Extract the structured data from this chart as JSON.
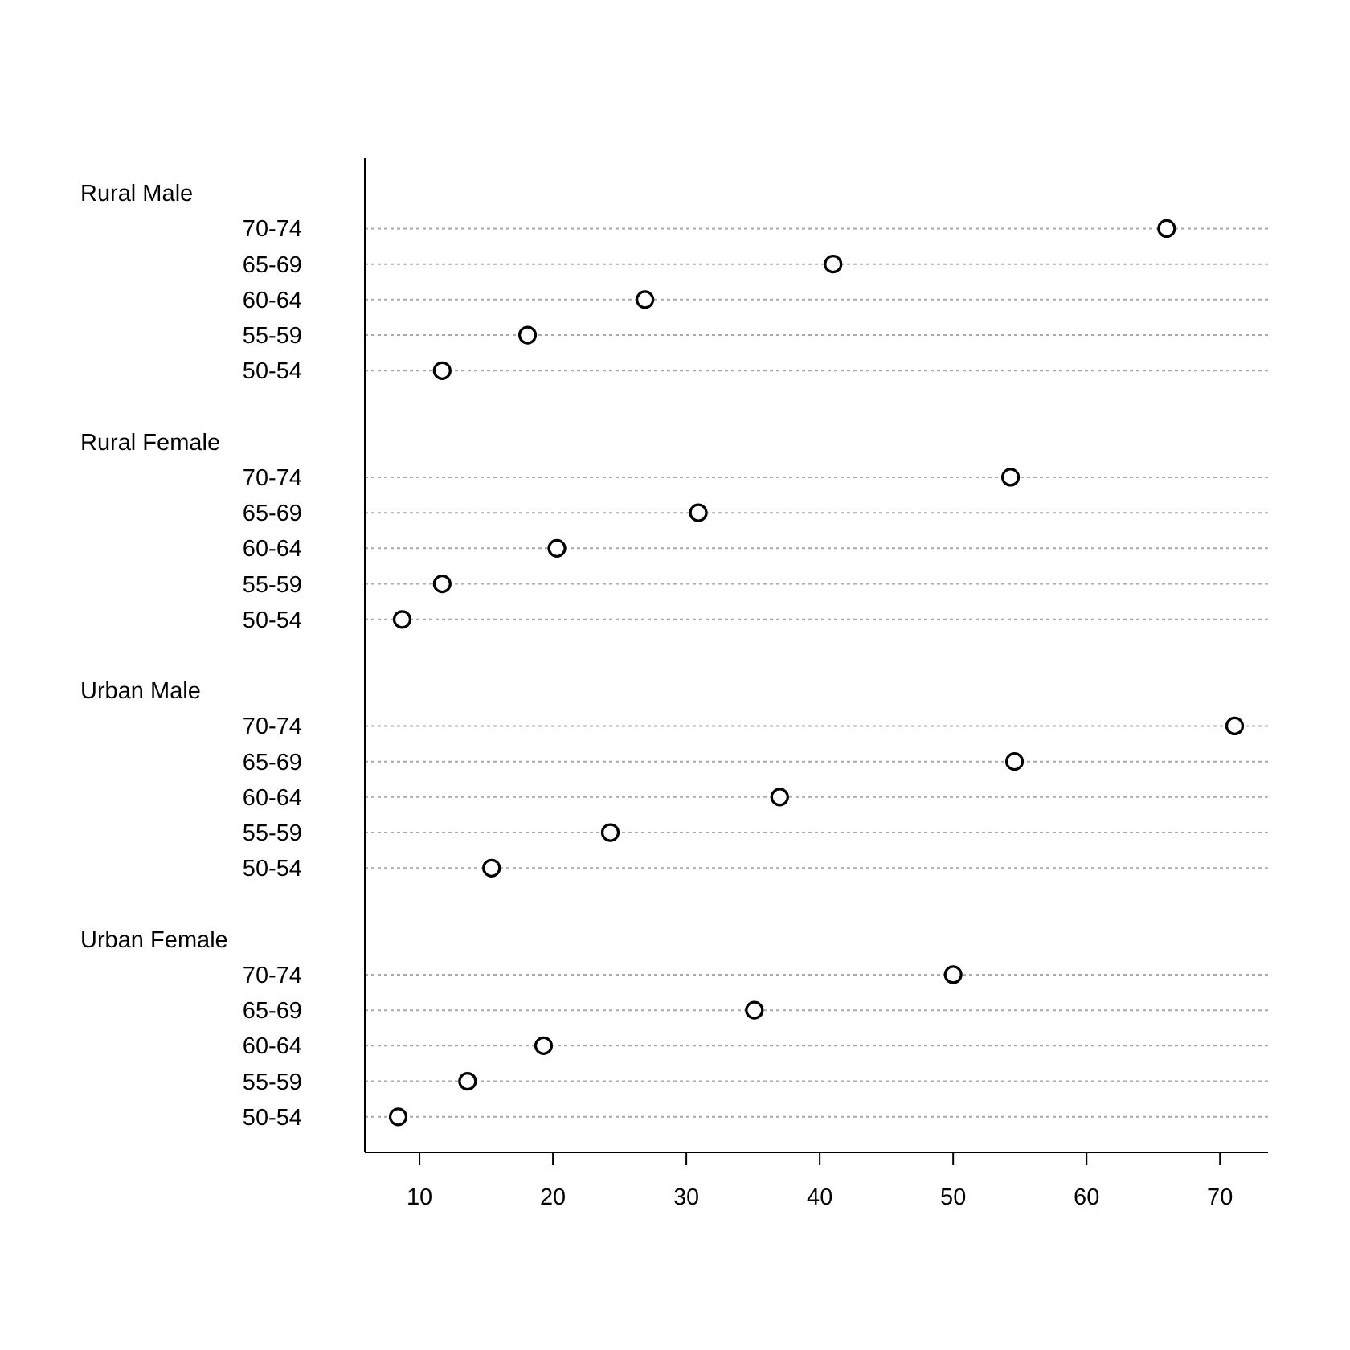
{
  "chart_data": {
    "type": "scatter",
    "categories": [
      null,
      "70-74",
      "65-69",
      "60-64",
      "55-59",
      "50-54",
      null,
      null,
      "70-74",
      "65-69",
      "60-64",
      "55-59",
      "50-54",
      null,
      null,
      "70-74",
      "65-69",
      "60-64",
      "55-59",
      "50-54",
      null,
      null,
      "70-74",
      "65-69",
      "60-64",
      "55-59",
      "50-54"
    ],
    "annotations": [
      "Rural Male",
      "Rural Female",
      "Urban Male",
      "Urban Female"
    ],
    "values": [
      null,
      66.0,
      41.0,
      26.9,
      18.1,
      11.7,
      null,
      null,
      54.3,
      30.9,
      20.3,
      11.7,
      8.7,
      null,
      null,
      71.1,
      54.6,
      37.0,
      24.3,
      15.4,
      null,
      null,
      50.0,
      35.1,
      19.3,
      13.6,
      8.4
    ],
    "orientation": "horizontal",
    "color": "#000000",
    "marker": "circle",
    "grid": "y",
    "xlim": [
      5.9,
      73.6
    ],
    "xticks": [
      10,
      20,
      30,
      40,
      50,
      60,
      70
    ]
  }
}
